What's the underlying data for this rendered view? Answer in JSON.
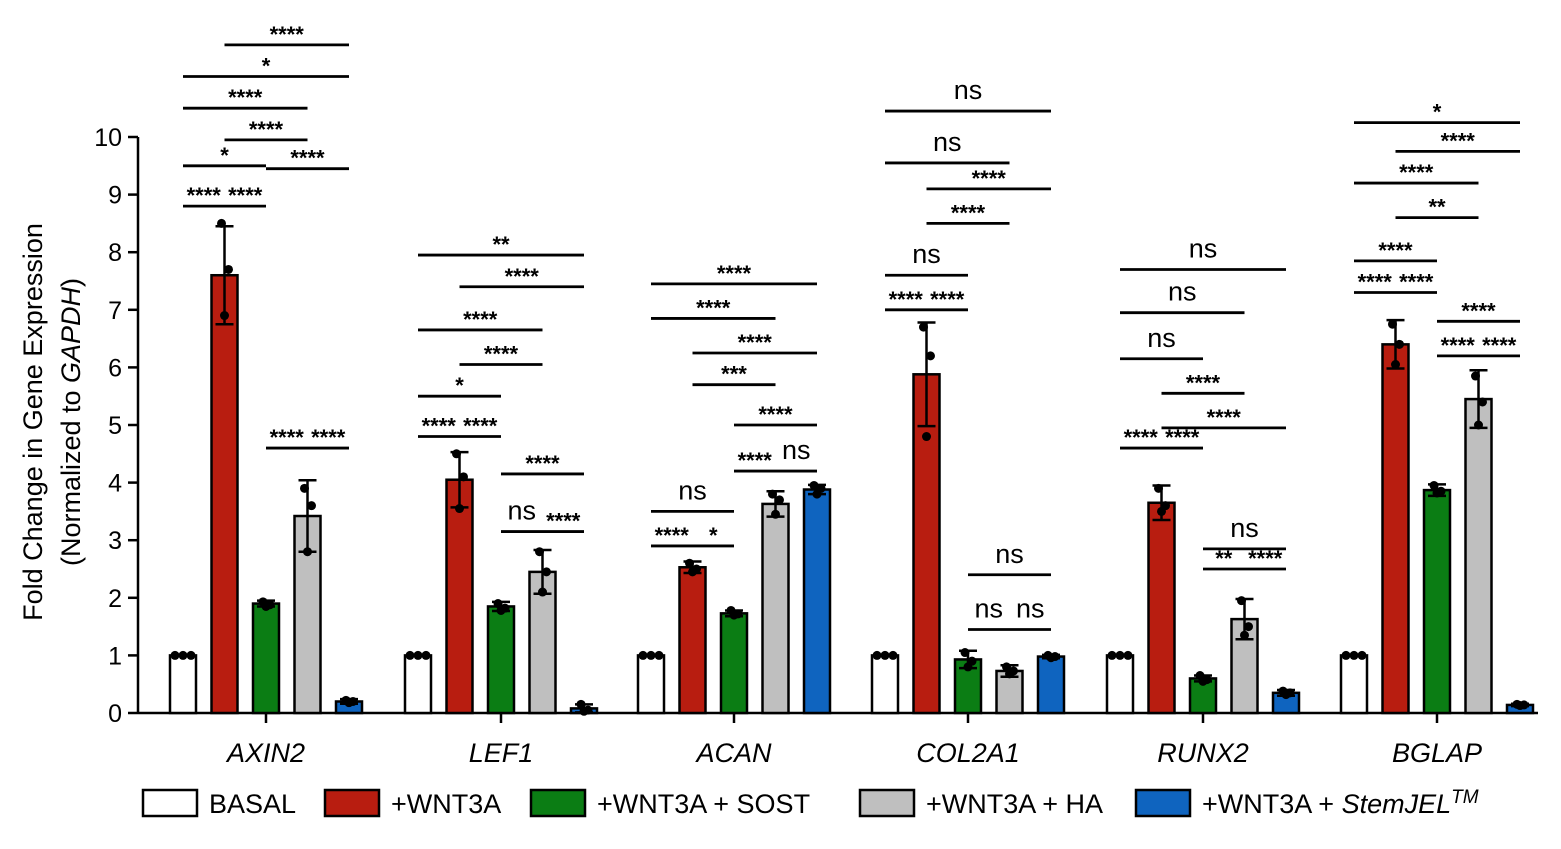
{
  "chart_data": {
    "type": "bar",
    "ylabel_line1": "Fold Change in Gene Expression",
    "ylabel_line2_prefix": "(Normalized to ",
    "ylabel_line2_italic": "GAPDH",
    "ylabel_line2_suffix": ")",
    "ylim": [
      0,
      10
    ],
    "yticks": [
      "0",
      "1",
      "2",
      "3",
      "4",
      "5",
      "6",
      "7",
      "8",
      "9",
      "10"
    ],
    "categories": [
      "AXIN2",
      "LEF1",
      "ACAN",
      "COL2A1",
      "RUNX2",
      "BGLAP"
    ],
    "colors": [
      "#ffffff",
      "#b81d10",
      "#0b7d14",
      "#bfbfbf",
      "#0f64bf"
    ],
    "series": [
      {
        "name": "BASAL",
        "values": [
          1,
          1,
          1,
          1,
          1,
          1
        ],
        "err": [
          0,
          0,
          0,
          0,
          0,
          0
        ],
        "points": [
          [
            1,
            1,
            1
          ],
          [
            1,
            1,
            1
          ],
          [
            1,
            1,
            1
          ],
          [
            1,
            1,
            1
          ],
          [
            1,
            1,
            1
          ],
          [
            1,
            1,
            1
          ]
        ]
      },
      {
        "name": "+WNT3A",
        "values": [
          7.6,
          4.05,
          2.53,
          5.88,
          3.65,
          6.4
        ],
        "err": [
          0.85,
          0.48,
          0.1,
          0.9,
          0.3,
          0.42
        ],
        "points": [
          [
            8.5,
            7.7,
            6.9
          ],
          [
            4.5,
            4.1,
            3.55
          ],
          [
            2.6,
            2.5,
            2.45
          ],
          [
            6.7,
            6.2,
            4.8
          ],
          [
            3.9,
            3.6,
            3.5
          ],
          [
            6.75,
            6.4,
            6.05
          ]
        ]
      },
      {
        "name": "+WNT3A + SOST",
        "values": [
          1.9,
          1.85,
          1.73,
          0.93,
          0.6,
          3.87
        ],
        "err": [
          0.05,
          0.08,
          0.05,
          0.15,
          0.05,
          0.1
        ],
        "points": [
          [
            1.93,
            1.88,
            1.85
          ],
          [
            1.9,
            1.82,
            1.78
          ],
          [
            1.78,
            1.72,
            1.7
          ],
          [
            1.05,
            0.9,
            0.8
          ],
          [
            0.65,
            0.58,
            0.55
          ],
          [
            3.95,
            3.85,
            3.82
          ]
        ]
      },
      {
        "name": "+WNT3A + HA",
        "values": [
          3.42,
          2.45,
          3.63,
          0.73,
          1.63,
          5.45
        ],
        "err": [
          0.62,
          0.38,
          0.22,
          0.1,
          0.35,
          0.5
        ],
        "points": [
          [
            3.9,
            3.6,
            2.8
          ],
          [
            2.8,
            2.45,
            2.1
          ],
          [
            3.8,
            3.7,
            3.45
          ],
          [
            0.8,
            0.73,
            0.68
          ],
          [
            1.95,
            1.5,
            1.35
          ],
          [
            5.85,
            5.4,
            5.0
          ]
        ]
      },
      {
        "name": "+WNT3A + StemJEL",
        "name_italic": "StemJEL",
        "name_prefix": "+WNT3A + ",
        "name_sup": "TM",
        "values": [
          0.2,
          0.08,
          3.88,
          0.98,
          0.35,
          0.14
        ],
        "err": [
          0.04,
          0.07,
          0.08,
          0.03,
          0.05,
          0.02
        ],
        "points": [
          [
            0.22,
            0.2,
            0.18
          ],
          [
            0.15,
            0.05,
            0.03
          ],
          [
            3.95,
            3.9,
            3.8
          ],
          [
            1.0,
            0.98,
            0.96
          ],
          [
            0.38,
            0.35,
            0.32
          ],
          [
            0.15,
            0.14,
            0.13
          ]
        ]
      }
    ],
    "significance": [
      {
        "cat": 0,
        "a": 0,
        "b": 1,
        "level": 8.8,
        "label": "****"
      },
      {
        "cat": 0,
        "a": 1,
        "b": 2,
        "level": 8.8,
        "label": "****"
      },
      {
        "cat": 0,
        "a": 0,
        "b": 2,
        "level": 9.5,
        "label": "*"
      },
      {
        "cat": 0,
        "a": 1,
        "b": 3,
        "level": 9.95,
        "label": "****"
      },
      {
        "cat": 0,
        "a": 0,
        "b": 3,
        "level": 10.5,
        "label": "****"
      },
      {
        "cat": 0,
        "a": 0,
        "b": 4,
        "level": 11.05,
        "label": "*"
      },
      {
        "cat": 0,
        "a": 1,
        "b": 4,
        "level": 11.6,
        "label": "****"
      },
      {
        "cat": 0,
        "a": 2,
        "b": 4,
        "level": 9.45,
        "label": "****"
      },
      {
        "cat": 0,
        "a": 2,
        "b": 3,
        "level": 4.6,
        "label": "****"
      },
      {
        "cat": 0,
        "a": 3,
        "b": 4,
        "level": 4.6,
        "label": "****"
      },
      {
        "cat": 1,
        "a": 0,
        "b": 1,
        "level": 4.8,
        "label": "****"
      },
      {
        "cat": 1,
        "a": 1,
        "b": 2,
        "level": 4.8,
        "label": "****"
      },
      {
        "cat": 1,
        "a": 0,
        "b": 2,
        "level": 5.5,
        "label": "*"
      },
      {
        "cat": 1,
        "a": 1,
        "b": 3,
        "level": 6.05,
        "label": "****"
      },
      {
        "cat": 1,
        "a": 0,
        "b": 3,
        "level": 6.65,
        "label": "****"
      },
      {
        "cat": 1,
        "a": 1,
        "b": 4,
        "level": 7.4,
        "label": "****"
      },
      {
        "cat": 1,
        "a": 0,
        "b": 4,
        "level": 7.95,
        "label": "**"
      },
      {
        "cat": 1,
        "a": 2,
        "b": 3,
        "level": 3.15,
        "label": "ns"
      },
      {
        "cat": 1,
        "a": 3,
        "b": 4,
        "level": 3.15,
        "label": "****"
      },
      {
        "cat": 1,
        "a": 2,
        "b": 4,
        "level": 4.15,
        "label": "****"
      },
      {
        "cat": 2,
        "a": 0,
        "b": 1,
        "level": 2.9,
        "label": "****"
      },
      {
        "cat": 2,
        "a": 1,
        "b": 2,
        "level": 2.9,
        "label": "*"
      },
      {
        "cat": 2,
        "a": 0,
        "b": 2,
        "level": 3.5,
        "label": "ns"
      },
      {
        "cat": 2,
        "a": 2,
        "b": 3,
        "level": 4.2,
        "label": "****"
      },
      {
        "cat": 2,
        "a": 3,
        "b": 4,
        "level": 4.2,
        "label": "ns"
      },
      {
        "cat": 2,
        "a": 2,
        "b": 4,
        "level": 5.0,
        "label": "****"
      },
      {
        "cat": 2,
        "a": 1,
        "b": 3,
        "level": 5.7,
        "label": "***"
      },
      {
        "cat": 2,
        "a": 1,
        "b": 4,
        "level": 6.25,
        "label": "****"
      },
      {
        "cat": 2,
        "a": 0,
        "b": 3,
        "level": 6.85,
        "label": "****"
      },
      {
        "cat": 2,
        "a": 0,
        "b": 4,
        "level": 7.45,
        "label": "****"
      },
      {
        "cat": 3,
        "a": 0,
        "b": 1,
        "level": 7.0,
        "label": "****"
      },
      {
        "cat": 3,
        "a": 1,
        "b": 2,
        "level": 7.0,
        "label": "****"
      },
      {
        "cat": 3,
        "a": 0,
        "b": 2,
        "level": 7.6,
        "label": "ns"
      },
      {
        "cat": 3,
        "a": 1,
        "b": 3,
        "level": 8.5,
        "label": "****"
      },
      {
        "cat": 3,
        "a": 1,
        "b": 4,
        "level": 9.1,
        "label": "****"
      },
      {
        "cat": 3,
        "a": 0,
        "b": 3,
        "level": 9.55,
        "label": "ns"
      },
      {
        "cat": 3,
        "a": 0,
        "b": 4,
        "level": 10.45,
        "label": "ns"
      },
      {
        "cat": 3,
        "a": 2,
        "b": 3,
        "level": 1.45,
        "label": "ns"
      },
      {
        "cat": 3,
        "a": 3,
        "b": 4,
        "level": 1.45,
        "label": "ns"
      },
      {
        "cat": 3,
        "a": 2,
        "b": 4,
        "level": 2.4,
        "label": "ns"
      },
      {
        "cat": 4,
        "a": 0,
        "b": 1,
        "level": 4.6,
        "label": "****"
      },
      {
        "cat": 4,
        "a": 1,
        "b": 2,
        "level": 4.6,
        "label": "****"
      },
      {
        "cat": 4,
        "a": 2,
        "b": 3,
        "level": 2.5,
        "label": "**"
      },
      {
        "cat": 4,
        "a": 3,
        "b": 4,
        "level": 2.5,
        "label": "****"
      },
      {
        "cat": 4,
        "a": 2,
        "b": 4,
        "level": 2.85,
        "label": "ns"
      },
      {
        "cat": 4,
        "a": 1,
        "b": 4,
        "level": 4.95,
        "label": "****"
      },
      {
        "cat": 4,
        "a": 1,
        "b": 3,
        "level": 5.55,
        "label": "****"
      },
      {
        "cat": 4,
        "a": 0,
        "b": 2,
        "level": 6.15,
        "label": "ns"
      },
      {
        "cat": 4,
        "a": 0,
        "b": 3,
        "level": 6.95,
        "label": "ns"
      },
      {
        "cat": 4,
        "a": 0,
        "b": 4,
        "level": 7.7,
        "label": "ns"
      },
      {
        "cat": 5,
        "a": 0,
        "b": 1,
        "level": 7.3,
        "label": "****"
      },
      {
        "cat": 5,
        "a": 1,
        "b": 2,
        "level": 7.3,
        "label": "****"
      },
      {
        "cat": 5,
        "a": 0,
        "b": 2,
        "level": 7.85,
        "label": "****"
      },
      {
        "cat": 5,
        "a": 2,
        "b": 3,
        "level": 6.2,
        "label": "****"
      },
      {
        "cat": 5,
        "a": 3,
        "b": 4,
        "level": 6.2,
        "label": "****"
      },
      {
        "cat": 5,
        "a": 2,
        "b": 4,
        "level": 6.8,
        "label": "****"
      },
      {
        "cat": 5,
        "a": 1,
        "b": 3,
        "level": 8.6,
        "label": "**"
      },
      {
        "cat": 5,
        "a": 0,
        "b": 3,
        "level": 9.2,
        "label": "****"
      },
      {
        "cat": 5,
        "a": 1,
        "b": 4,
        "level": 9.75,
        "label": "****"
      },
      {
        "cat": 5,
        "a": 0,
        "b": 4,
        "level": 10.25,
        "label": "*"
      }
    ]
  }
}
